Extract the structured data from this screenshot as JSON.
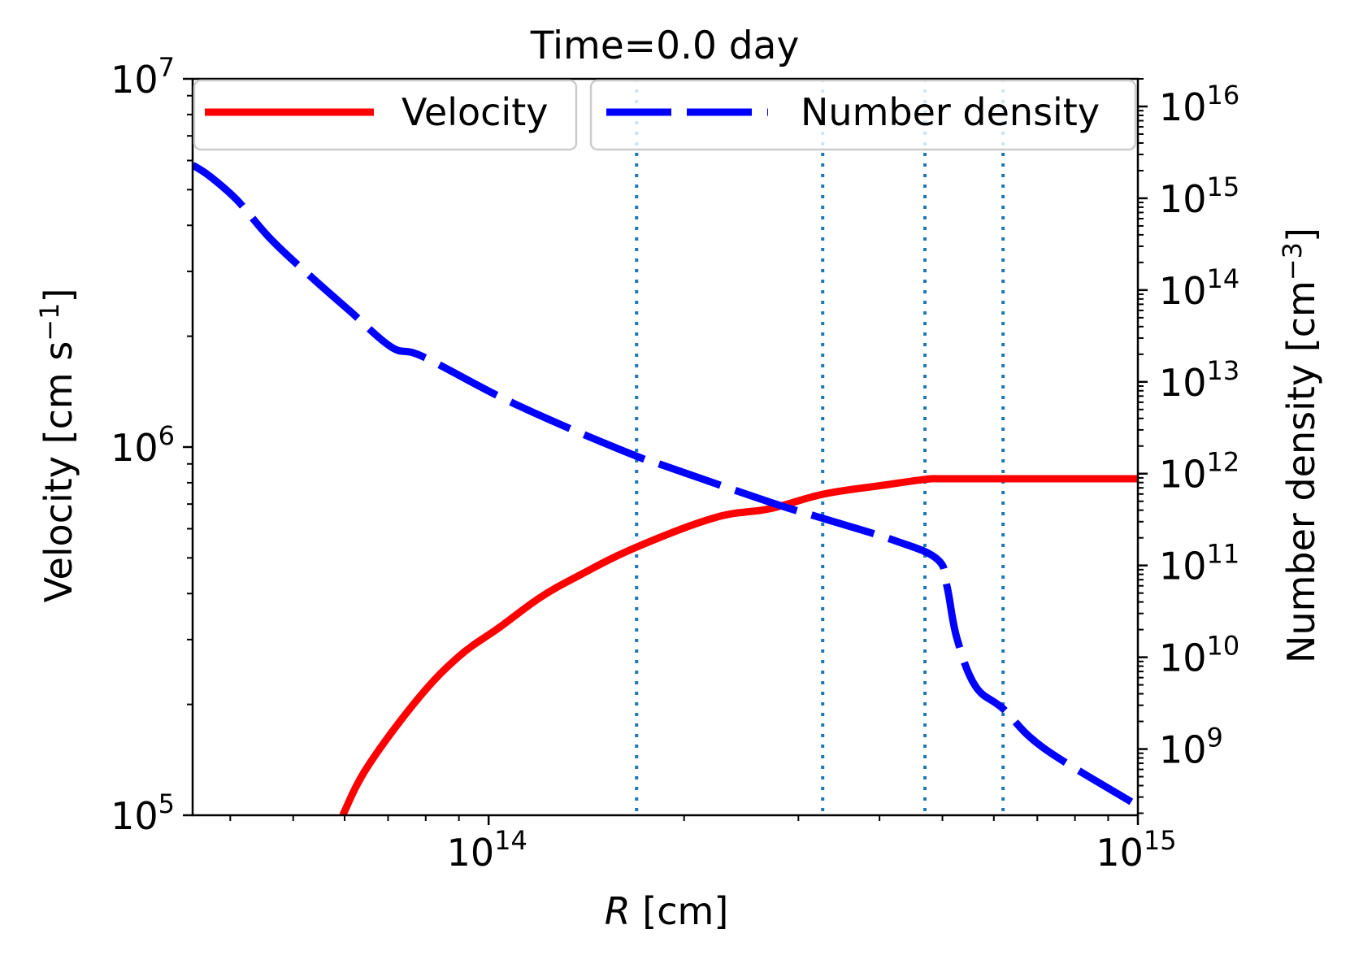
{
  "chart_data": {
    "type": "line",
    "title": "Time=0.0 day",
    "xlabel_italic": "R",
    "xlabel_rest": " [cm]",
    "xscale": "log",
    "xlim": [
      35000000000000.0,
      1000000000000000.0
    ],
    "xticks": [
      {
        "value": 100000000000000.0,
        "base": "10",
        "exp": "14"
      },
      {
        "value": 1000000000000000.0,
        "base": "10",
        "exp": "15"
      }
    ],
    "left_axis": {
      "label": "Velocity  [cm s",
      "label_sup": "−1",
      "label_end": "]",
      "scale": "log",
      "ylim": [
        100000.0,
        10000000.0
      ],
      "ticks": [
        {
          "value": 100000.0,
          "base": "10",
          "exp": "5"
        },
        {
          "value": 1000000.0,
          "base": "10",
          "exp": "6"
        },
        {
          "value": 10000000.0,
          "base": "10",
          "exp": "7"
        }
      ]
    },
    "right_axis": {
      "label": "Number density  [cm",
      "label_sup": "−3",
      "label_end": "]",
      "scale": "log",
      "ylim": [
        190000000.0,
        2e+16
      ],
      "ticks": [
        {
          "value": 1000000000.0,
          "base": "10",
          "exp": "9"
        },
        {
          "value": 10000000000.0,
          "base": "10",
          "exp": "10"
        },
        {
          "value": 100000000000.0,
          "base": "10",
          "exp": "11"
        },
        {
          "value": 1000000000000.0,
          "base": "10",
          "exp": "12"
        },
        {
          "value": 10000000000000.0,
          "base": "10",
          "exp": "13"
        },
        {
          "value": 100000000000000.0,
          "base": "10",
          "exp": "14"
        },
        {
          "value": 1000000000000000.0,
          "base": "10",
          "exp": "15"
        },
        {
          "value": 1e+16,
          "base": "10",
          "exp": "16"
        }
      ]
    },
    "series": [
      {
        "name": "Velocity",
        "axis": "left",
        "color": "#ff0000",
        "style": "solid",
        "x": [
          59600000000000.0,
          65000000000000.0,
          77800000000000.0,
          90000000000000.0,
          104000000000000.0,
          120000000000000.0,
          138500000000000.0,
          169000000000000.0,
          223000000000000.0,
          271000000000000.0,
          328000000000000.0,
          400000000000000.0,
          470000000000000.0,
          500000000000000.0,
          600000000000000.0,
          800000000000000.0,
          1000000000000000.0
        ],
        "y": [
          100000.0,
          135000.0,
          207000.0,
          270000.0,
          324000.0,
          390000.0,
          450000.0,
          535000.0,
          643000.0,
          680000.0,
          745000.0,
          785000.0,
          817000.0,
          820000.0,
          820000.0,
          820000.0,
          820000.0
        ]
      },
      {
        "name": "Number density",
        "axis": "right",
        "color": "#0000ff",
        "style": "dashed",
        "x": [
          35000000000000.0,
          37200000000000.0,
          41000000000000.0,
          46000000000000.0,
          53000000000000.0,
          61000000000000.0,
          70800000000000.0,
          79000000000000.0,
          104000000000000.0,
          132000000000000.0,
          169000000000000.0,
          184000000000000.0,
          271000000000000.0,
          328000000000000.0,
          422000000000000.0,
          491000000000000.0,
          508000000000000.0,
          526000000000000.0,
          562000000000000.0,
          620000000000000.0,
          714000000000000.0,
          977000000000000.0
        ],
        "y": [
          2300000000000000.0,
          1740000000000000.0,
          950000000000000.0,
          370000000000000.0,
          144000000000000.0,
          60000000000000.0,
          24000000000000.0,
          19000000000000.0,
          6900000000000.0,
          3200000000000.0,
          1550000000000.0,
          1260000000000.0,
          490000000000.0,
          324000000000.0,
          187000000000.0,
          117000000000.0,
          60000000000.0,
          16400000000.0,
          4850000000.0,
          2750000000.0,
          1040000000.0,
          266000000.0
        ]
      }
    ],
    "vlines": {
      "color": "#1f77b4",
      "style": "dotted",
      "x": [
        169000000000000.0,
        327000000000000.0,
        470000000000000.0,
        620000000000000.0
      ]
    },
    "legend": {
      "placement": "top",
      "entries": [
        {
          "label": "Velocity",
          "color": "#ff0000",
          "style": "solid"
        },
        {
          "label": "Number density",
          "color": "#0000ff",
          "style": "dashed"
        }
      ]
    },
    "grid": false
  }
}
